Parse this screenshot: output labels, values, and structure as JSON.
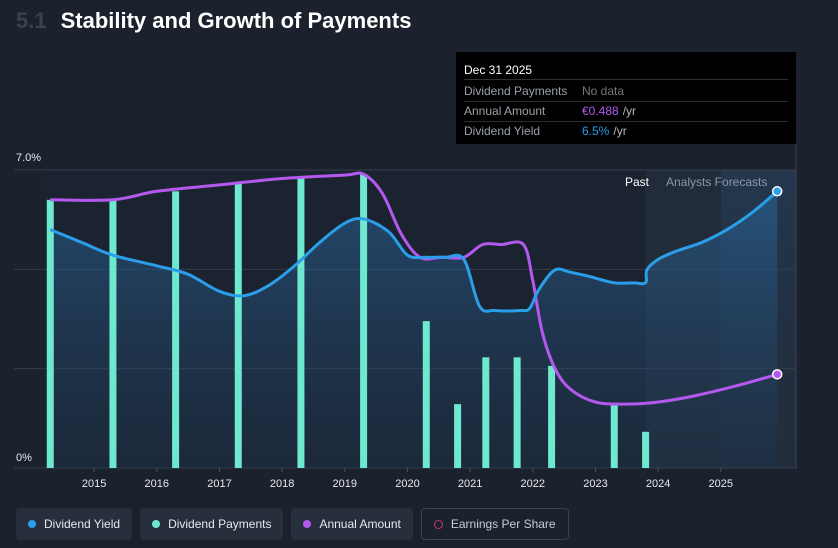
{
  "header": {
    "section_number": "5.1",
    "title": "Stability and Growth of Payments"
  },
  "tooltip": {
    "date": "Dec 31 2025",
    "rows": [
      {
        "label": "Dividend Payments",
        "value": "No data",
        "unit": ""
      },
      {
        "label": "Annual Amount",
        "value": "€0.488",
        "unit": "/yr"
      },
      {
        "label": "Dividend Yield",
        "value": "6.5%",
        "unit": "/yr"
      }
    ]
  },
  "regions": {
    "past_label": "Past",
    "forecast_label": "Analysts Forecasts"
  },
  "legend": [
    {
      "label": "Dividend Yield",
      "color": "#2a9ee8",
      "hollow": false
    },
    {
      "label": "Dividend Payments",
      "color": "#6ee8cf",
      "hollow": false
    },
    {
      "label": "Annual Amount",
      "color": "#b459f0",
      "hollow": false
    },
    {
      "label": "Earnings Per Share",
      "color": "#c0396b",
      "hollow": true
    }
  ],
  "chart_data": {
    "type": "line",
    "title": "Stability and Growth of Payments",
    "y_tick_labels": [
      "7.0%",
      "0%"
    ],
    "ylim": [
      0,
      7.0
    ],
    "x_tick_labels": [
      "2015",
      "2016",
      "2017",
      "2018",
      "2019",
      "2020",
      "2021",
      "2022",
      "2023",
      "2024",
      "2025"
    ],
    "xlim": [
      2014.2,
      2026.2
    ],
    "grid": true,
    "series": [
      {
        "name": "Dividend Yield",
        "type": "line",
        "color": "#2a9ee8",
        "x": [
          2014.3,
          2014.8,
          2015.3,
          2016.0,
          2016.5,
          2017.0,
          2017.4,
          2017.8,
          2018.2,
          2018.6,
          2019.0,
          2019.3,
          2019.7,
          2020.0,
          2020.3,
          2020.6,
          2020.9,
          2021.15,
          2021.4,
          2021.8,
          2021.95,
          2022.1,
          2022.35,
          2022.6,
          2022.9,
          2023.3,
          2023.6,
          2023.8,
          2023.82,
          2024.0,
          2024.3,
          2024.7,
          2025.1,
          2025.5,
          2025.9
        ],
        "values": [
          5.6,
          5.3,
          5.0,
          4.75,
          4.55,
          4.15,
          4.05,
          4.3,
          4.75,
          5.3,
          5.75,
          5.85,
          5.55,
          5.0,
          4.95,
          4.95,
          4.9,
          3.8,
          3.7,
          3.7,
          3.75,
          4.2,
          4.65,
          4.6,
          4.5,
          4.35,
          4.35,
          4.35,
          4.65,
          4.9,
          5.1,
          5.3,
          5.6,
          6.0,
          6.5
        ]
      },
      {
        "name": "Annual Amount",
        "type": "line",
        "color": "#b459f0",
        "x": [
          2014.3,
          2015.3,
          2016.0,
          2017.0,
          2018.0,
          2019.0,
          2019.3,
          2019.6,
          2019.9,
          2020.2,
          2020.55,
          2020.9,
          2021.2,
          2021.5,
          2021.85,
          2022.0,
          2022.15,
          2022.35,
          2022.6,
          2023.0,
          2023.5,
          2024.0,
          2024.6,
          2025.3,
          2025.9
        ],
        "values": [
          6.3,
          6.3,
          6.5,
          6.65,
          6.8,
          6.88,
          6.9,
          6.45,
          5.5,
          4.95,
          4.95,
          4.95,
          5.25,
          5.25,
          5.25,
          4.4,
          3.2,
          2.35,
          1.85,
          1.55,
          1.5,
          1.55,
          1.7,
          1.95,
          2.2
        ]
      },
      {
        "name": "Dividend Payments",
        "type": "bar",
        "color": "#6ee8cf",
        "x": [
          2014.3,
          2015.3,
          2016.3,
          2017.3,
          2018.3,
          2019.3,
          2020.3,
          2020.8,
          2021.25,
          2021.75,
          2022.3,
          2023.3,
          2023.8
        ],
        "values": [
          6.3,
          6.3,
          6.5,
          6.7,
          6.82,
          6.9,
          3.45,
          1.5,
          2.6,
          2.6,
          2.4,
          1.5,
          0.85
        ]
      }
    ],
    "forecast_start_x": 2023.8
  }
}
